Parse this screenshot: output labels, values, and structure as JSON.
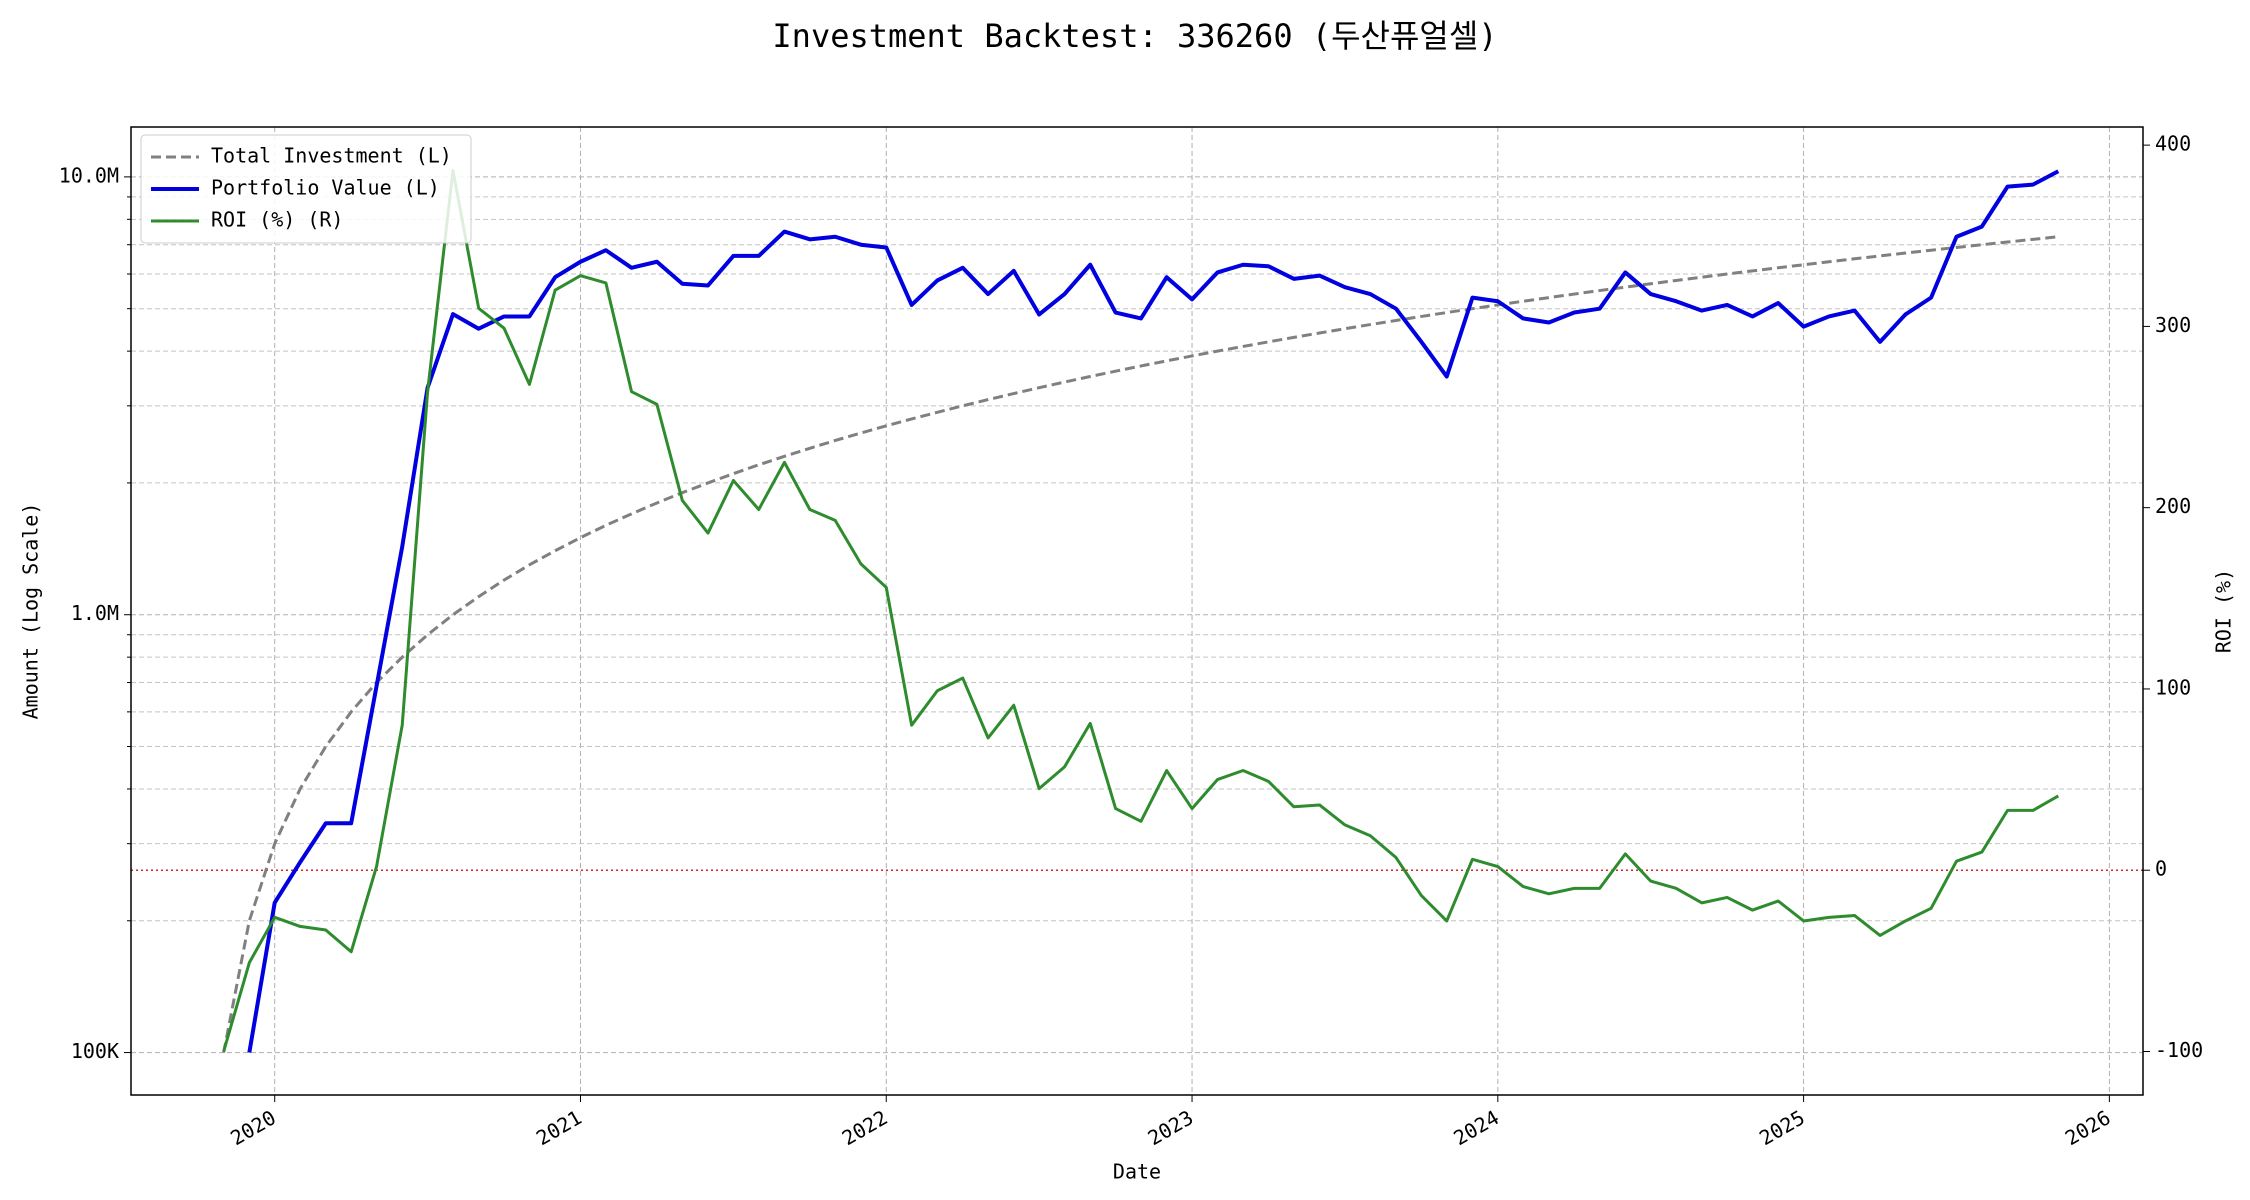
{
  "chart_data": {
    "type": "line",
    "title": "Investment Backtest: 336260 (두산퓨얼셀)",
    "xlabel": "Date",
    "ylabel": "Amount (Log Scale)",
    "y2label": "ROI (%)",
    "yscale": "log",
    "grid": true,
    "legend": "upper left",
    "xlim": [
      2019.53,
      2026.11
    ],
    "xticks": [
      2020,
      2021,
      2022,
      2023,
      2024,
      2025,
      2026
    ],
    "ylim": [
      80000,
      13000000
    ],
    "yticks": [
      {
        "value": 100000,
        "label": "100K"
      },
      {
        "value": 1000000,
        "label": "1.0M"
      },
      {
        "value": 10000000,
        "label": "10.0M"
      }
    ],
    "yminorticks": [
      200000,
      300000,
      400000,
      500000,
      600000,
      700000,
      800000,
      900000,
      2000000,
      3000000,
      4000000,
      5000000,
      6000000,
      7000000,
      8000000,
      9000000
    ],
    "y2lim": [
      -124,
      410
    ],
    "y2ticks": [
      -100,
      0,
      100,
      200,
      300,
      400
    ],
    "zero_line": {
      "value": 0,
      "axis": "y2",
      "color": "#d62728"
    },
    "x": [
      2019.833,
      2019.917,
      2020,
      2020.083,
      2020.167,
      2020.25,
      2020.333,
      2020.417,
      2020.5,
      2020.583,
      2020.667,
      2020.75,
      2020.833,
      2020.917,
      2021,
      2021.083,
      2021.167,
      2021.25,
      2021.333,
      2021.417,
      2021.5,
      2021.583,
      2021.667,
      2021.75,
      2021.833,
      2021.917,
      2022,
      2022.083,
      2022.167,
      2022.25,
      2022.333,
      2022.417,
      2022.5,
      2022.583,
      2022.667,
      2022.75,
      2022.833,
      2022.917,
      2023,
      2023.083,
      2023.167,
      2023.25,
      2023.333,
      2023.417,
      2023.5,
      2023.583,
      2023.667,
      2023.75,
      2023.833,
      2023.917,
      2024,
      2024.083,
      2024.167,
      2024.25,
      2024.333,
      2024.417,
      2024.5,
      2024.583,
      2024.667,
      2024.75,
      2024.833,
      2024.917,
      2025,
      2025.083,
      2025.167,
      2025.25,
      2025.333,
      2025.417,
      2025.5,
      2025.583,
      2025.667,
      2025.75,
      2025.833
    ],
    "series": [
      {
        "name": "Total Investment (L)",
        "color": "#808080",
        "linestyle": "dashed",
        "values": [
          100000,
          200000,
          300000,
          400000,
          500000,
          600000,
          700000,
          800000,
          900000,
          1000000,
          1100000,
          1200000,
          1300000,
          1400000,
          1500000,
          1600000,
          1700000,
          1800000,
          1900000,
          2000000,
          2100000,
          2200000,
          2300000,
          2400000,
          2500000,
          2600000,
          2700000,
          2800000,
          2900000,
          3000000,
          3100000,
          3200000,
          3300000,
          3400000,
          3500000,
          3600000,
          3700000,
          3800000,
          3900000,
          4000000,
          4100000,
          4200000,
          4300000,
          4400000,
          4500000,
          4600000,
          4700000,
          4800000,
          4900000,
          5000000,
          5100000,
          5200000,
          5300000,
          5400000,
          5500000,
          5600000,
          5700000,
          5800000,
          5900000,
          6000000,
          6100000,
          6200000,
          6300000,
          6400000,
          6500000,
          6600000,
          6700000,
          6800000,
          6900000,
          7000000,
          7100000,
          7200000,
          7300000
        ]
      },
      {
        "name": "Portfolio Value (L)",
        "color": "#0000e0",
        "linestyle": "solid",
        "values": [
          null,
          100000,
          220000,
          272000,
          334000,
          334000,
          687000,
          1430000,
          3300000,
          4860000,
          4500000,
          4800000,
          4800000,
          5900000,
          6400000,
          6800000,
          6200000,
          6400000,
          5700000,
          5650000,
          6600000,
          6600000,
          7500000,
          7200000,
          7300000,
          7000000,
          6900000,
          5100000,
          5800000,
          6200000,
          5400000,
          6100000,
          4850000,
          5400000,
          6300000,
          4900000,
          4750000,
          5900000,
          5250000,
          6050000,
          6300000,
          6250000,
          5850000,
          5950000,
          5600000,
          5400000,
          5000000,
          4200000,
          3500000,
          5300000,
          5200000,
          4750000,
          4650000,
          4900000,
          5000000,
          6050000,
          5400000,
          5200000,
          4950000,
          5100000,
          4800000,
          5150000,
          4550000,
          4800000,
          4950000,
          4200000,
          4850000,
          5300000,
          7300000,
          7700000,
          9500000,
          9600000,
          10300000
        ]
      },
      {
        "name": "ROI (%) (R)",
        "color": "#2e8b2e",
        "linestyle": "solid",
        "axis": "y2",
        "values": [
          -100,
          -51,
          -26,
          -31,
          -33,
          -45,
          2,
          80,
          264,
          386,
          310,
          299,
          268,
          320,
          328,
          324,
          264,
          257,
          204,
          186,
          215,
          199,
          225,
          199,
          193,
          169,
          156,
          80,
          99,
          106,
          73,
          91,
          45,
          57,
          81,
          34,
          27,
          55,
          34,
          50,
          55,
          49,
          35,
          36,
          25,
          19,
          7,
          -14,
          -28,
          6,
          2,
          -9,
          -13,
          -10,
          -10,
          9,
          -6,
          -10,
          -18,
          -15,
          -22,
          -17,
          -28,
          -26,
          -25,
          -36,
          -28,
          -21,
          5,
          10,
          33,
          33,
          41
        ]
      }
    ]
  }
}
